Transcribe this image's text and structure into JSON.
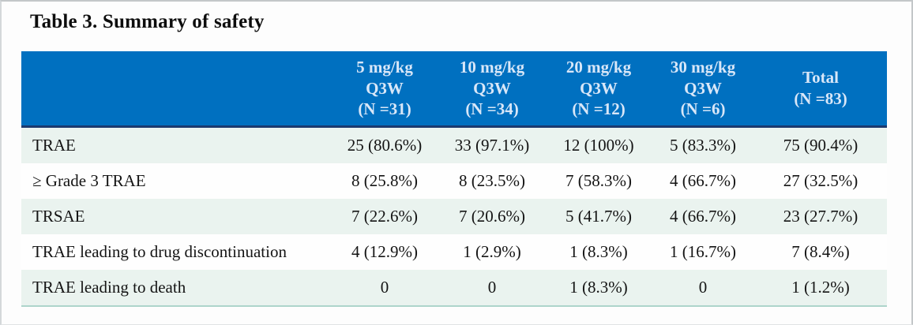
{
  "title": "Table 3. Summary of safety",
  "colors": {
    "header_bg": "#0070c0",
    "header_text": "#d9e7f8",
    "header_bottom_border": "#1c3a6e",
    "shaded_row_bg": "#eaf3ef",
    "table_bottom_border": "#aed5cb",
    "body_text": "#141414"
  },
  "table": {
    "columns": [
      {
        "label": ""
      },
      {
        "label": "5 mg/kg\nQ3W\n(N =31)"
      },
      {
        "label": "10 mg/kg\nQ3W\n(N =34)"
      },
      {
        "label": "20 mg/kg\nQ3W\n(N =12)"
      },
      {
        "label": "30 mg/kg\nQ3W\n(N =6)"
      },
      {
        "label": "Total\n(N =83)"
      }
    ],
    "rows": [
      {
        "label": "TRAE",
        "values": [
          "25 (80.6%)",
          "33 (97.1%)",
          "12 (100%)",
          "5 (83.3%)",
          "75 (90.4%)"
        ]
      },
      {
        "label": "≥ Grade 3 TRAE",
        "values": [
          "8 (25.8%)",
          "8 (23.5%)",
          "7 (58.3%)",
          "4 (66.7%)",
          "27 (32.5%)"
        ]
      },
      {
        "label": "TRSAE",
        "values": [
          "7 (22.6%)",
          "7 (20.6%)",
          "5 (41.7%)",
          "4 (66.7%)",
          "23 (27.7%)"
        ]
      },
      {
        "label": "TRAE leading to drug discontinuation",
        "values": [
          "4 (12.9%)",
          "1 (2.9%)",
          "1 (8.3%)",
          "1 (16.7%)",
          "7 (8.4%)"
        ]
      },
      {
        "label": "TRAE leading to death",
        "values": [
          "0",
          "0",
          "1 (8.3%)",
          "0",
          "1 (1.2%)"
        ]
      }
    ]
  }
}
